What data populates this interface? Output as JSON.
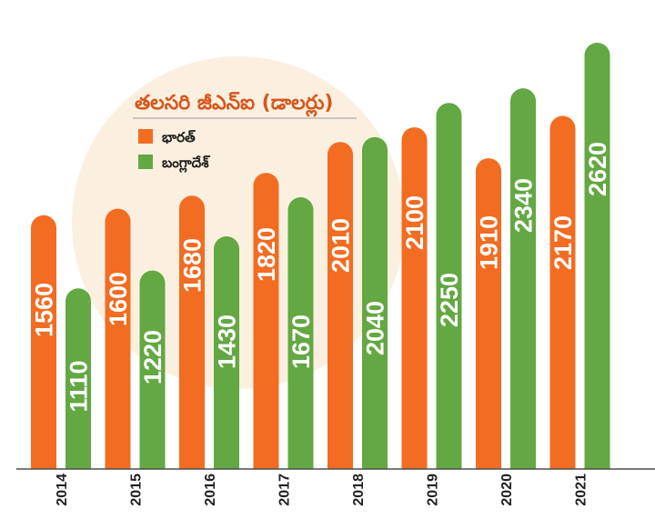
{
  "chart_data": {
    "type": "bar",
    "title": "తలసరి జీఎన్ఐ (డాలర్లు)",
    "categories": [
      "2014",
      "2015",
      "2016",
      "2017",
      "2018",
      "2019",
      "2020",
      "2021"
    ],
    "series": [
      {
        "name": "భారత్",
        "color": "#F26C22",
        "values": [
          1560,
          1600,
          1680,
          1820,
          2010,
          2100,
          1910,
          2170
        ]
      },
      {
        "name": "బంగ్లాదేశ్",
        "color": "#63A843",
        "values": [
          1110,
          1220,
          1430,
          1670,
          2040,
          2250,
          2340,
          2620
        ]
      }
    ],
    "ylim": [
      0,
      2620
    ],
    "grid": false,
    "legend_position": "top-left"
  },
  "colors": {
    "background_circle": "#FBF0DF",
    "title": "#D4581F",
    "title_underline": "#9B9B9B",
    "baseline": "#4D4D4D"
  }
}
